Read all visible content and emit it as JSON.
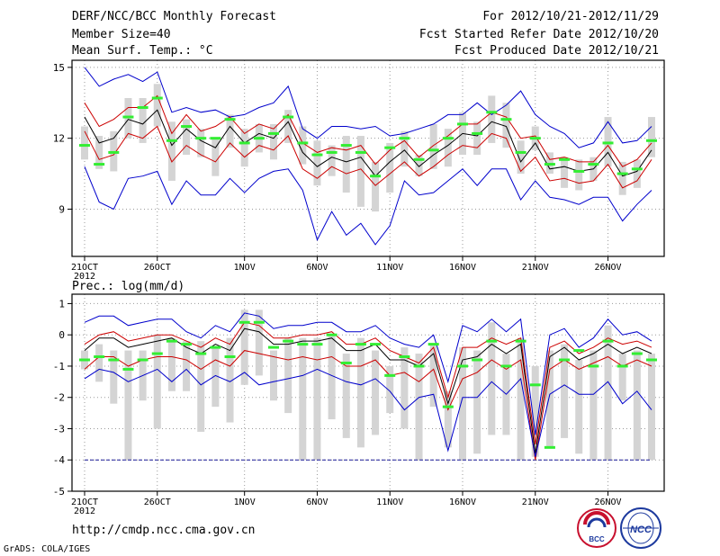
{
  "header": {
    "title": "DERF/NCC/BCC Monthly Forecast",
    "member_size": "Member Size=40",
    "variable": "Mean Surf. Temp.: °C",
    "forecast_period": "For 2012/10/21-2012/11/29",
    "fcst_started": "Fcst Started Refer Date 2012/10/20",
    "fcst_produced": "Fcst Produced Date 2012/10/21"
  },
  "footer": {
    "url": "http://cmdp.ncc.cma.gov.cn",
    "credit": "GrADS: COLA/IGES",
    "logo_bcc": "BCC",
    "logo_ncc": "NCC"
  },
  "colors": {
    "envelope": "#0000cc",
    "spread": "#cc0000",
    "mean": "#000000",
    "box": "#d4d4d4",
    "marker": "#33ee33",
    "dashed": "#1a1a99"
  },
  "chart_data": [
    {
      "type": "line",
      "title": "Mean Surf. Temp.: °C",
      "x_tick_labels": [
        "21OCT",
        "26OCT",
        "1NOV",
        "6NOV",
        "11NOV",
        "16NOV",
        "21NOV",
        "26NOV"
      ],
      "x_tick_days": [
        0,
        5,
        11,
        16,
        21,
        26,
        31,
        36
      ],
      "year_label": "2012",
      "n_days": 40,
      "ylim": [
        7,
        15.3
      ],
      "y_ticks": [
        9,
        12,
        15
      ],
      "series": [
        {
          "name": "max",
          "values": [
            15.0,
            14.2,
            14.5,
            14.7,
            14.4,
            14.8,
            13.1,
            13.3,
            13.1,
            13.2,
            12.9,
            13.0,
            13.3,
            13.5,
            14.2,
            12.4,
            12.0,
            12.5,
            12.5,
            12.4,
            12.5,
            12.1,
            12.2,
            12.4,
            12.6,
            13.0,
            13.0,
            13.5,
            13.0,
            13.4,
            14.0,
            13.0,
            12.5,
            12.2,
            11.6,
            11.8,
            12.7,
            11.8,
            11.9,
            12.5
          ]
        },
        {
          "name": "upper",
          "values": [
            13.5,
            12.5,
            12.8,
            13.3,
            13.3,
            13.8,
            12.2,
            13.0,
            12.3,
            12.5,
            12.9,
            12.2,
            12.6,
            12.4,
            13.0,
            11.8,
            11.4,
            11.6,
            11.5,
            11.7,
            10.9,
            11.5,
            11.9,
            11.2,
            11.7,
            12.1,
            12.6,
            12.6,
            13.1,
            12.9,
            12.0,
            12.1,
            11.1,
            11.2,
            11.0,
            11.0,
            11.7,
            10.8,
            11.1,
            11.8
          ]
        },
        {
          "name": "mean",
          "values": [
            12.9,
            11.8,
            12.0,
            12.8,
            12.6,
            13.2,
            11.7,
            12.4,
            11.9,
            11.6,
            12.5,
            11.8,
            12.2,
            12.0,
            12.7,
            11.4,
            10.8,
            11.2,
            11.0,
            11.2,
            10.4,
            11.0,
            11.5,
            10.8,
            11.3,
            11.7,
            12.2,
            12.1,
            12.7,
            12.5,
            11.0,
            11.8,
            10.7,
            10.8,
            10.6,
            10.7,
            11.4,
            10.4,
            10.6,
            11.5
          ]
        },
        {
          "name": "lower",
          "values": [
            12.3,
            11.1,
            11.3,
            12.2,
            12.0,
            12.5,
            11.0,
            11.7,
            11.3,
            11.0,
            11.8,
            11.2,
            11.7,
            11.5,
            12.1,
            10.7,
            10.3,
            10.8,
            10.5,
            10.7,
            10.0,
            10.5,
            11.0,
            10.4,
            10.8,
            11.3,
            11.7,
            11.6,
            12.2,
            12.0,
            10.6,
            11.2,
            10.2,
            10.3,
            10.1,
            10.2,
            10.9,
            9.9,
            10.2,
            11.1
          ]
        },
        {
          "name": "min",
          "values": [
            10.8,
            9.3,
            9.0,
            10.3,
            10.4,
            10.6,
            9.2,
            10.2,
            9.6,
            9.6,
            10.3,
            9.7,
            10.3,
            10.6,
            10.7,
            9.8,
            7.7,
            8.9,
            7.9,
            8.4,
            7.5,
            8.3,
            10.2,
            9.6,
            9.7,
            10.2,
            10.7,
            10.0,
            10.7,
            10.7,
            9.4,
            10.2,
            9.5,
            9.4,
            9.2,
            9.5,
            9.5,
            8.5,
            9.2,
            9.8
          ]
        }
      ],
      "boxes": [
        [
          11.1,
          12.5
        ],
        [
          10.7,
          12.1
        ],
        [
          10.6,
          12.3
        ],
        [
          12.0,
          13.7
        ],
        [
          11.8,
          13.7
        ],
        [
          12.5,
          14.3
        ],
        [
          10.2,
          12.7
        ],
        [
          11.3,
          12.8
        ],
        [
          11.2,
          12.4
        ],
        [
          10.4,
          12.0
        ],
        [
          11.6,
          13.0
        ],
        [
          10.8,
          12.4
        ],
        [
          11.4,
          12.6
        ],
        [
          11.1,
          12.6
        ],
        [
          11.8,
          13.2
        ],
        [
          10.9,
          12.5
        ],
        [
          10.0,
          11.9
        ],
        [
          10.4,
          11.7
        ],
        [
          9.7,
          12.1
        ],
        [
          9.1,
          12.1
        ],
        [
          8.9,
          11.0
        ],
        [
          9.7,
          11.8
        ],
        [
          10.8,
          12.3
        ],
        [
          10.4,
          11.3
        ],
        [
          10.7,
          12.6
        ],
        [
          10.8,
          12.4
        ],
        [
          11.3,
          13.1
        ],
        [
          11.3,
          12.7
        ],
        [
          11.8,
          13.8
        ],
        [
          11.6,
          13.5
        ],
        [
          10.5,
          11.9
        ],
        [
          11.5,
          12.5
        ],
        [
          10.5,
          11.4
        ],
        [
          9.9,
          11.2
        ],
        [
          9.8,
          11.1
        ],
        [
          10.2,
          11.2
        ],
        [
          10.8,
          12.9
        ],
        [
          9.6,
          11.0
        ],
        [
          9.9,
          11.1
        ],
        [
          11.2,
          12.9
        ]
      ],
      "markers": [
        11.7,
        10.9,
        11.4,
        12.9,
        13.3,
        13.7,
        11.9,
        12.5,
        12.0,
        12.0,
        12.8,
        11.8,
        12.0,
        12.2,
        12.9,
        11.8,
        11.3,
        11.4,
        11.7,
        11.4,
        10.4,
        11.6,
        12.0,
        11.1,
        11.5,
        12.0,
        12.6,
        12.2,
        13.1,
        12.8,
        11.4,
        12.0,
        10.9,
        11.1,
        10.6,
        10.9,
        11.8,
        10.5,
        10.7,
        11.9
      ]
    },
    {
      "type": "line",
      "title": "Prec.: log(mm/d)",
      "x_tick_labels": [
        "21OCT",
        "26OCT",
        "1NOV",
        "6NOV",
        "11NOV",
        "16NOV",
        "21NOV",
        "26NOV"
      ],
      "x_tick_days": [
        0,
        5,
        11,
        16,
        21,
        26,
        31,
        36
      ],
      "year_label": "2012",
      "n_days": 40,
      "ylim": [
        -5,
        1.3
      ],
      "y_ticks": [
        -5,
        -4,
        -3,
        -2,
        -1,
        0,
        1
      ],
      "dashed_level": -4,
      "series": [
        {
          "name": "max",
          "values": [
            0.4,
            0.6,
            0.6,
            0.3,
            0.4,
            0.5,
            0.5,
            0.1,
            -0.1,
            0.3,
            0.1,
            0.7,
            0.6,
            0.2,
            0.3,
            0.3,
            0.4,
            0.4,
            0.1,
            0.1,
            0.3,
            -0.1,
            -0.3,
            -0.4,
            0.0,
            -1.5,
            0.3,
            0.1,
            0.5,
            0.1,
            0.5,
            -3.2,
            0.0,
            0.2,
            -0.4,
            -0.1,
            0.5,
            0.0,
            0.1,
            -0.2
          ]
        },
        {
          "name": "upper",
          "values": [
            -0.3,
            0.0,
            0.1,
            -0.2,
            -0.1,
            0.0,
            0.0,
            -0.2,
            -0.4,
            -0.1,
            -0.3,
            0.4,
            0.3,
            -0.1,
            -0.1,
            0.0,
            0.0,
            0.1,
            -0.3,
            -0.3,
            -0.1,
            -0.5,
            -0.7,
            -0.9,
            -0.4,
            -2.0,
            -0.4,
            -0.4,
            -0.1,
            -0.3,
            -0.1,
            -3.5,
            -0.4,
            -0.2,
            -0.6,
            -0.4,
            -0.1,
            -0.3,
            -0.2,
            -0.4
          ]
        },
        {
          "name": "mean",
          "values": [
            -0.5,
            -0.1,
            -0.1,
            -0.4,
            -0.3,
            -0.2,
            -0.1,
            -0.4,
            -0.6,
            -0.3,
            -0.5,
            0.2,
            0.1,
            -0.3,
            -0.3,
            -0.2,
            -0.2,
            -0.1,
            -0.5,
            -0.5,
            -0.3,
            -0.8,
            -0.8,
            -1.0,
            -0.6,
            -2.2,
            -0.8,
            -0.7,
            -0.3,
            -0.6,
            -0.3,
            -3.8,
            -0.7,
            -0.4,
            -0.8,
            -0.6,
            -0.3,
            -0.6,
            -0.4,
            -0.6
          ]
        },
        {
          "name": "lower",
          "values": [
            -1.1,
            -0.7,
            -0.7,
            -1.0,
            -0.8,
            -0.7,
            -0.7,
            -0.8,
            -1.1,
            -0.8,
            -1.0,
            -0.5,
            -0.6,
            -0.7,
            -0.8,
            -0.7,
            -0.8,
            -0.7,
            -1.0,
            -1.0,
            -0.8,
            -1.3,
            -1.2,
            -1.5,
            -1.1,
            -2.4,
            -1.4,
            -1.2,
            -0.8,
            -1.1,
            -0.8,
            -4.0,
            -1.1,
            -0.8,
            -1.1,
            -0.9,
            -0.7,
            -1.0,
            -0.8,
            -1.0
          ]
        },
        {
          "name": "min",
          "values": [
            -1.4,
            -1.1,
            -1.2,
            -1.5,
            -1.3,
            -1.1,
            -1.5,
            -1.1,
            -1.6,
            -1.3,
            -1.5,
            -1.2,
            -1.6,
            -1.5,
            -1.4,
            -1.3,
            -1.1,
            -1.3,
            -1.5,
            -1.6,
            -1.4,
            -1.8,
            -2.4,
            -2.0,
            -1.9,
            -3.7,
            -2.0,
            -2.0,
            -1.5,
            -1.9,
            -1.4,
            -3.9,
            -1.9,
            -1.6,
            -1.9,
            -1.9,
            -1.5,
            -2.2,
            -1.8,
            -2.4
          ]
        },
        {
          "name": "floor",
          "values": [
            -4.0,
            -4.0,
            -4.0,
            -4.0,
            -4.0,
            -4.0,
            -4.0,
            -4.0,
            -4.0,
            -4.0,
            -4.0,
            -4.0,
            -4.0,
            -4.0,
            -4.0,
            -4.0,
            -4.0,
            -4.0,
            -4.0,
            -4.0,
            -4.0,
            -4.0,
            -4.0,
            -4.0,
            -4.0,
            -4.0,
            -4.0,
            -4.0,
            -4.0,
            -4.0,
            -4.0,
            -4.0,
            -4.0,
            -4.0,
            -4.0,
            -4.0,
            -4.0,
            -4.0,
            -4.0,
            -4.0
          ]
        }
      ],
      "boxes": [
        [
          -1.1,
          -0.5
        ],
        [
          -1.5,
          -0.3
        ],
        [
          -2.2,
          -0.5
        ],
        [
          -4.0,
          -0.5
        ],
        [
          -2.1,
          -0.5
        ],
        [
          -3.0,
          0.0
        ],
        [
          -1.8,
          -0.1
        ],
        [
          -1.8,
          -0.2
        ],
        [
          -3.1,
          -0.2
        ],
        [
          -2.3,
          -0.4
        ],
        [
          -2.8,
          -0.1
        ],
        [
          -1.6,
          0.8
        ],
        [
          -1.3,
          0.8
        ],
        [
          -2.1,
          -0.5
        ],
        [
          -2.5,
          -0.1
        ],
        [
          -4.0,
          -0.1
        ],
        [
          -4.0,
          -0.1
        ],
        [
          -2.7,
          0.0
        ],
        [
          -3.3,
          -0.6
        ],
        [
          -3.6,
          -0.1
        ],
        [
          -3.2,
          -0.5
        ],
        [
          -2.5,
          -1.0
        ],
        [
          -3.0,
          -0.4
        ],
        [
          -4.0,
          -0.6
        ],
        [
          -2.3,
          -0.3
        ],
        [
          -3.6,
          -1.8
        ],
        [
          -4.0,
          -0.4
        ],
        [
          -3.8,
          -0.5
        ],
        [
          -3.2,
          0.4
        ],
        [
          -3.2,
          -0.6
        ],
        [
          -4.0,
          -0.1
        ],
        [
          -3.9,
          -1.0
        ],
        [
          -3.6,
          -0.5
        ],
        [
          -3.3,
          -0.3
        ],
        [
          -3.8,
          -0.8
        ],
        [
          -4.0,
          -0.5
        ],
        [
          -4.0,
          0.3
        ],
        [
          -2.1,
          -0.6
        ],
        [
          -4.0,
          -0.5
        ],
        [
          -4.0,
          -0.6
        ]
      ],
      "markers": [
        -0.8,
        -0.7,
        -0.8,
        -1.1,
        -0.8,
        -0.6,
        -0.2,
        -0.3,
        -0.6,
        -0.4,
        -0.7,
        0.4,
        0.4,
        -0.4,
        -0.2,
        -0.3,
        -0.3,
        0.0,
        -0.9,
        -0.3,
        -0.3,
        -1.3,
        -0.7,
        -1.0,
        -0.3,
        -2.3,
        -1.0,
        -0.8,
        -0.2,
        -1.0,
        -0.2,
        -1.6,
        -3.6,
        -0.8,
        -0.5,
        -1.0,
        -0.2,
        -1.0,
        -0.6,
        -0.8
      ]
    }
  ]
}
